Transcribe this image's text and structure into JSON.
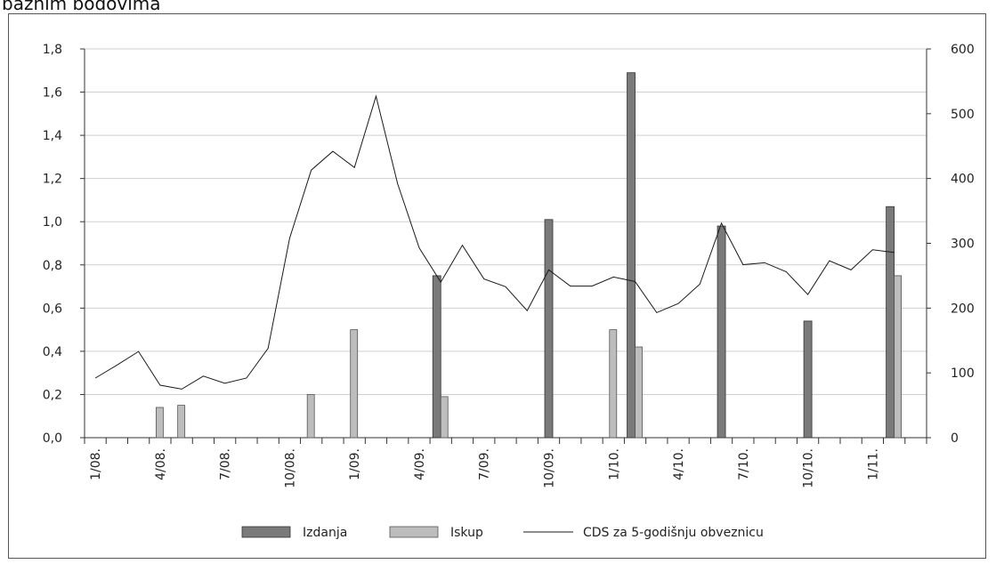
{
  "page": {
    "heading": "baznim bodovima"
  },
  "chart_data": {
    "type": "bar",
    "left_axis": {
      "ylim": [
        0,
        1.8
      ],
      "tick_values": [
        0,
        0.2,
        0.4,
        0.6,
        0.8,
        1.0,
        1.2,
        1.4,
        1.6,
        1.8
      ],
      "tick_labels": [
        "0,0",
        "0,2",
        "0,4",
        "0,6",
        "0,8",
        "1,0",
        "1,2",
        "1,4",
        "1,6",
        "1,8"
      ]
    },
    "right_axis": {
      "ylim": [
        0,
        600
      ],
      "tick_values": [
        0,
        100,
        200,
        300,
        400,
        500,
        600
      ],
      "tick_labels": [
        "0",
        "100",
        "200",
        "300",
        "400",
        "500",
        "600"
      ]
    },
    "x_axis": {
      "num_months": 39,
      "label_month_indices": [
        0,
        3,
        6,
        9,
        12,
        15,
        18,
        21,
        24,
        27,
        30,
        33,
        36
      ],
      "tick_labels": [
        "1/08.",
        "4/08.",
        "7/08.",
        "10/08.",
        "1/09.",
        "4/09.",
        "7/09.",
        "10/09.",
        "1/10.",
        "4/10.",
        "7/10.",
        "10/10.",
        "1/11."
      ]
    },
    "series": [
      {
        "name": "Izdanja",
        "axis": "left",
        "kind": "bar",
        "color": "#7a7a7a",
        "points": [
          {
            "month": 16.5,
            "value": 0.75
          },
          {
            "month": 21.5,
            "value": 1.01
          },
          {
            "month": 25.5,
            "value": 1.69
          },
          {
            "month": 29.5,
            "value": 0.98
          },
          {
            "month": 33.5,
            "value": 0.54
          },
          {
            "month": 37.5,
            "value": 1.07
          }
        ]
      },
      {
        "name": "Iskup",
        "axis": "left",
        "kind": "bar",
        "color": "#bdbdbd",
        "points": [
          {
            "month": 3.5,
            "value": 0.14
          },
          {
            "month": 4.5,
            "value": 0.15
          },
          {
            "month": 10.5,
            "value": 0.2
          },
          {
            "month": 12.5,
            "value": 0.5
          },
          {
            "month": 16.5,
            "value": 0.19
          },
          {
            "month": 24.5,
            "value": 0.5
          },
          {
            "month": 25.5,
            "value": 0.42
          },
          {
            "month": 37.5,
            "value": 0.75
          }
        ]
      },
      {
        "name": "CDS za 5-godišnju obveznicu",
        "axis": "right",
        "kind": "line",
        "color": "#1a1a1a",
        "points": [
          {
            "month": 0.5,
            "value": 92
          },
          {
            "month": 1.5,
            "value": 112
          },
          {
            "month": 2.5,
            "value": 133
          },
          {
            "month": 3.5,
            "value": 81
          },
          {
            "month": 4.5,
            "value": 75
          },
          {
            "month": 5.5,
            "value": 95
          },
          {
            "month": 6.5,
            "value": 84
          },
          {
            "month": 7.5,
            "value": 92
          },
          {
            "month": 8.5,
            "value": 138
          },
          {
            "month": 9.5,
            "value": 308
          },
          {
            "month": 10.5,
            "value": 413
          },
          {
            "month": 11.5,
            "value": 442
          },
          {
            "month": 12.5,
            "value": 417
          },
          {
            "month": 13.5,
            "value": 527
          },
          {
            "month": 14.5,
            "value": 392
          },
          {
            "month": 15.5,
            "value": 293
          },
          {
            "month": 16.5,
            "value": 240
          },
          {
            "month": 17.5,
            "value": 297
          },
          {
            "month": 18.5,
            "value": 245
          },
          {
            "month": 19.5,
            "value": 233
          },
          {
            "month": 20.5,
            "value": 196
          },
          {
            "month": 21.5,
            "value": 259
          },
          {
            "month": 22.5,
            "value": 234
          },
          {
            "month": 23.5,
            "value": 234
          },
          {
            "month": 24.5,
            "value": 248
          },
          {
            "month": 25.5,
            "value": 241
          },
          {
            "month": 26.5,
            "value": 193
          },
          {
            "month": 27.5,
            "value": 207
          },
          {
            "month": 28.5,
            "value": 237
          },
          {
            "month": 29.5,
            "value": 331
          },
          {
            "month": 30.5,
            "value": 267
          },
          {
            "month": 31.5,
            "value": 270
          },
          {
            "month": 32.5,
            "value": 256
          },
          {
            "month": 33.5,
            "value": 221
          },
          {
            "month": 34.5,
            "value": 273
          },
          {
            "month": 35.5,
            "value": 259
          },
          {
            "month": 36.5,
            "value": 290
          },
          {
            "month": 37.5,
            "value": 286
          }
        ]
      }
    ],
    "legend": {
      "placement": "bottom",
      "items": [
        "Izdanja",
        "Iskup",
        "CDS za 5-godišnju obveznicu"
      ]
    }
  }
}
